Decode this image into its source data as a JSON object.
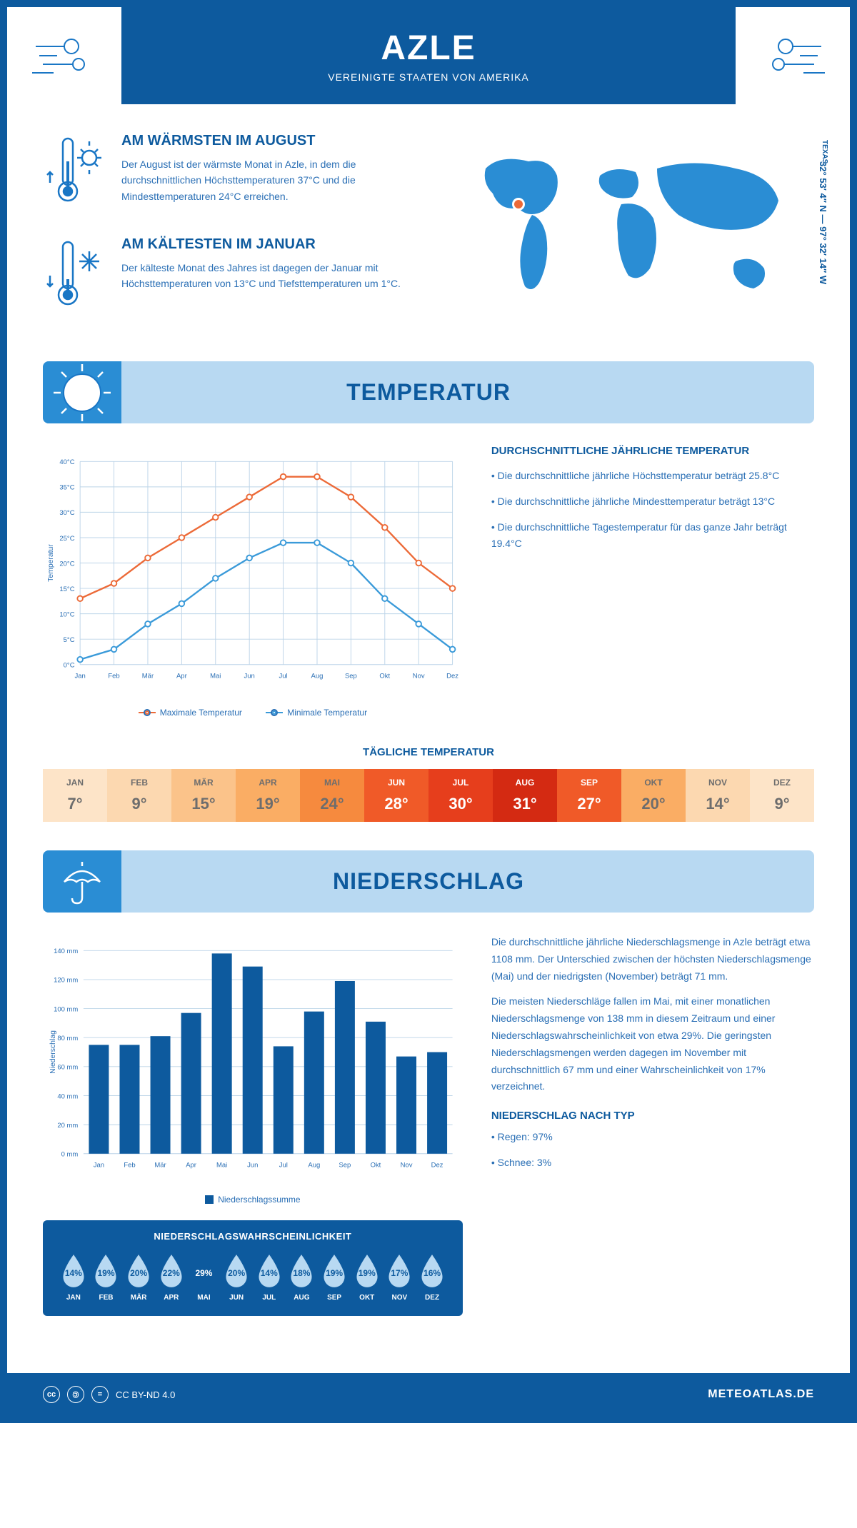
{
  "header": {
    "title": "AZLE",
    "subtitle": "VEREINIGTE STAATEN VON AMERIKA"
  },
  "coords": "32° 53′ 4″ N — 97° 32′ 14″ W",
  "region": "TEXAS",
  "warm": {
    "title": "AM WÄRMSTEN IM AUGUST",
    "text": "Der August ist der wärmste Monat in Azle, in dem die durchschnittlichen Höchsttemperaturen 37°C und die Mindesttemperaturen 24°C erreichen."
  },
  "cold": {
    "title": "AM KÄLTESTEN IM JANUAR",
    "text": "Der kälteste Monat des Jahres ist dagegen der Januar mit Höchsttemperaturen von 13°C und Tiefsttemperaturen um 1°C."
  },
  "temp_section": {
    "banner": "TEMPERATUR",
    "side_title": "DURCHSCHNITTLICHE JÄHRLICHE TEMPERATUR",
    "bullets": [
      "• Die durchschnittliche jährliche Höchsttemperatur beträgt 25.8°C",
      "• Die durchschnittliche jährliche Mindesttemperatur beträgt 13°C",
      "• Die durchschnittliche Tagestemperatur für das ganze Jahr beträgt 19.4°C"
    ],
    "legend_max": "Maximale Temperatur",
    "legend_min": "Minimale Temperatur",
    "y_axis_label": "Temperatur"
  },
  "line_chart": {
    "type": "line",
    "months": [
      "Jan",
      "Feb",
      "Mär",
      "Apr",
      "Mai",
      "Jun",
      "Jul",
      "Aug",
      "Sep",
      "Okt",
      "Nov",
      "Dez"
    ],
    "max_values": [
      13,
      16,
      21,
      25,
      29,
      33,
      37,
      37,
      33,
      27,
      20,
      15
    ],
    "min_values": [
      1,
      3,
      8,
      12,
      17,
      21,
      24,
      24,
      20,
      13,
      8,
      3
    ],
    "color_max": "#ec6a38",
    "color_min": "#3a9ad9",
    "ylim": [
      0,
      40
    ],
    "ytick_step": 5,
    "grid_color": "#bcd4e8",
    "background": "#ffffff",
    "line_width": 2.5,
    "marker_size": 4
  },
  "daily_temp": {
    "title": "TÄGLICHE TEMPERATUR",
    "months": [
      "JAN",
      "FEB",
      "MÄR",
      "APR",
      "MAI",
      "JUN",
      "JUL",
      "AUG",
      "SEP",
      "OKT",
      "NOV",
      "DEZ"
    ],
    "values": [
      "7°",
      "9°",
      "15°",
      "19°",
      "24°",
      "28°",
      "30°",
      "31°",
      "27°",
      "20°",
      "14°",
      "9°"
    ],
    "bg_colors": [
      "#fde4c8",
      "#fcd8b0",
      "#fbc38a",
      "#faad64",
      "#f68a3e",
      "#f05a28",
      "#e63e1c",
      "#d42a12",
      "#f05a28",
      "#faad64",
      "#fcd8b0",
      "#fde4c8"
    ],
    "text_colors": [
      "#6d6d6d",
      "#6d6d6d",
      "#6d6d6d",
      "#6d6d6d",
      "#6d6d6d",
      "#ffffff",
      "#ffffff",
      "#ffffff",
      "#ffffff",
      "#6d6d6d",
      "#6d6d6d",
      "#6d6d6d"
    ]
  },
  "precip_section": {
    "banner": "NIEDERSCHLAG",
    "para1": "Die durchschnittliche jährliche Niederschlagsmenge in Azle beträgt etwa 1108 mm. Der Unterschied zwischen der höchsten Niederschlagsmenge (Mai) und der niedrigsten (November) beträgt 71 mm.",
    "para2": "Die meisten Niederschläge fallen im Mai, mit einer monatlichen Niederschlagsmenge von 138 mm in diesem Zeitraum und einer Niederschlagswahrscheinlichkeit von etwa 29%. Die geringsten Niederschlagsmengen werden dagegen im November mit durchschnittlich 67 mm und einer Wahrscheinlichkeit von 17% verzeichnet.",
    "type_title": "NIEDERSCHLAG NACH TYP",
    "type_bullets": [
      "• Regen: 97%",
      "• Schnee: 3%"
    ],
    "legend": "Niederschlagssumme",
    "y_axis_label": "Niederschlag"
  },
  "bar_chart": {
    "type": "bar",
    "months": [
      "Jan",
      "Feb",
      "Mär",
      "Apr",
      "Mai",
      "Jun",
      "Jul",
      "Aug",
      "Sep",
      "Okt",
      "Nov",
      "Dez"
    ],
    "values": [
      75,
      75,
      81,
      97,
      138,
      129,
      74,
      98,
      119,
      91,
      67,
      70
    ],
    "color": "#0d5a9e",
    "ylim": [
      0,
      140
    ],
    "ytick_step": 20,
    "grid_color": "#bcd4e8",
    "bar_width": 0.65
  },
  "precip_prob": {
    "title": "NIEDERSCHLAGSWAHRSCHEINLICHKEIT",
    "months": [
      "JAN",
      "FEB",
      "MÄR",
      "APR",
      "MAI",
      "JUN",
      "JUL",
      "AUG",
      "SEP",
      "OKT",
      "NOV",
      "DEZ"
    ],
    "values": [
      "14%",
      "19%",
      "20%",
      "22%",
      "29%",
      "20%",
      "14%",
      "18%",
      "19%",
      "19%",
      "17%",
      "16%"
    ],
    "max_index": 4,
    "empty_fill": "#b8d9f2",
    "full_fill": "#0d5a9e",
    "empty_text": "#0d5a9e",
    "full_text": "#ffffff"
  },
  "footer": {
    "license": "CC BY-ND 4.0",
    "site": "METEOATLAS.DE"
  }
}
